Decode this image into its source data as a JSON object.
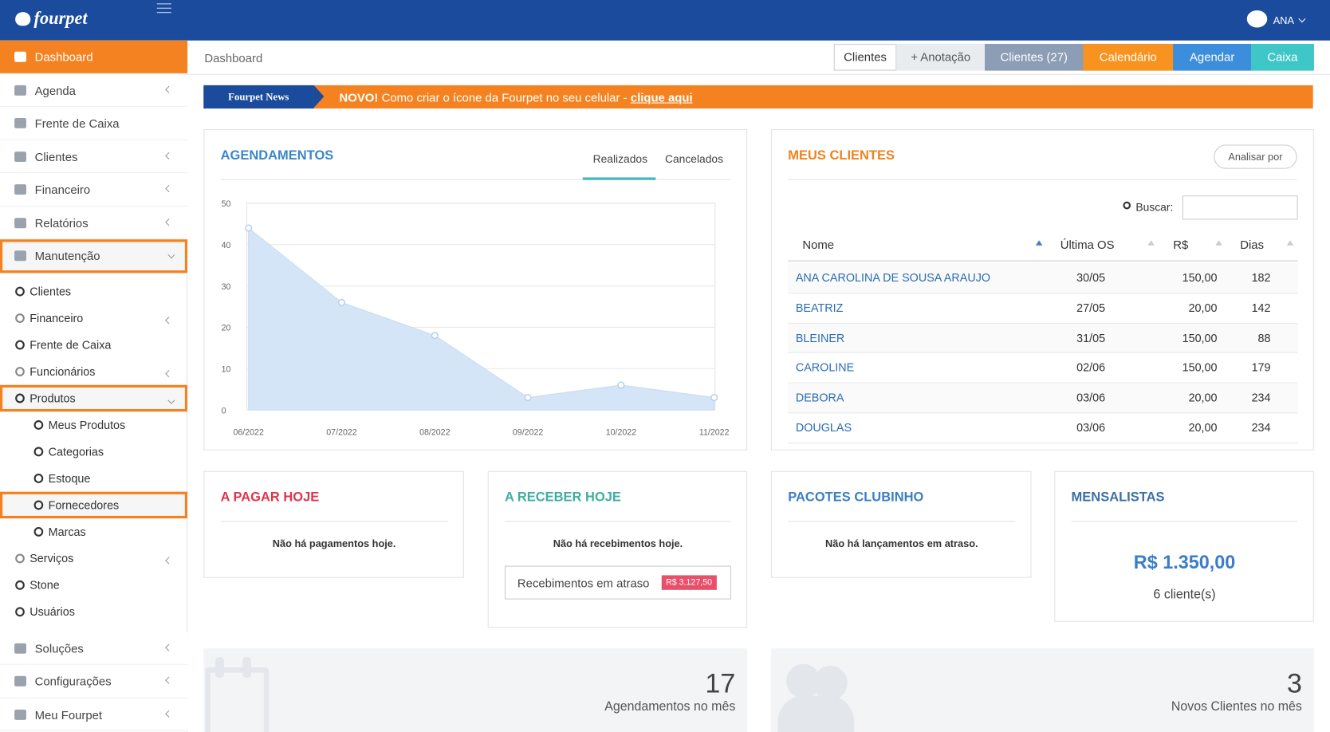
{
  "header": {
    "brand": "fourpet",
    "user": "ANA"
  },
  "sidebar": {
    "items": [
      {
        "label": "Dashboard",
        "active": true
      },
      {
        "label": "Agenda",
        "submenu": true
      },
      {
        "label": "Frente de Caixa"
      },
      {
        "label": "Clientes",
        "submenu": true
      },
      {
        "label": "Financeiro",
        "submenu": true
      },
      {
        "label": "Relatórios",
        "submenu": true
      },
      {
        "label": "Manutenção",
        "highlighted": true,
        "children": [
          {
            "label": "Clientes"
          },
          {
            "label": "Financeiro",
            "submenu": true
          },
          {
            "label": "Frente de Caixa"
          },
          {
            "label": "Funcionários",
            "submenu": true
          },
          {
            "label": "Produtos",
            "highlighted": true,
            "children": [
              {
                "label": "Meus Produtos"
              },
              {
                "label": "Categorias"
              },
              {
                "label": "Estoque"
              },
              {
                "label": "Fornecedores",
                "highlighted": true
              },
              {
                "label": "Marcas"
              }
            ]
          },
          {
            "label": "Serviços",
            "submenu": true
          },
          {
            "label": "Stone"
          },
          {
            "label": "Usuários"
          }
        ]
      },
      {
        "label": "Soluções",
        "submenu": true
      },
      {
        "label": "Configurações",
        "submenu": true
      },
      {
        "label": "Meu Fourpet",
        "submenu": true
      }
    ]
  },
  "breadcrumb": "Dashboard",
  "toolbar": [
    {
      "label": "Clientes",
      "color": "#ffffff",
      "text_color": "#333333"
    },
    {
      "label": "+ Anotação",
      "color": "#e9ecef",
      "text_color": "#555555"
    },
    {
      "label": "Clientes (27)",
      "color": "#8c9db5",
      "text_color": "#ffffff"
    },
    {
      "label": "Calendário",
      "color": "#f7931e",
      "text_color": "#ffffff"
    },
    {
      "label": "Agendar",
      "color": "#3c8ddc",
      "text_color": "#ffffff"
    },
    {
      "label": "Caixa",
      "color": "#3fc6c6",
      "text_color": "#ffffff"
    }
  ],
  "news": {
    "label": "Fourpet News",
    "badge": "NOVO!",
    "text": "Como criar o ícone da Fourpet no seu celular -",
    "link": "clique aqui"
  },
  "agendamentos": {
    "title": "AGENDAMENTOS",
    "color": "#3a87c8",
    "tabs": [
      "Realizados",
      "Cancelados"
    ],
    "chart": {
      "type": "area",
      "categories": [
        "06/2022",
        "07/2022",
        "08/2022",
        "09/2022",
        "10/2022",
        "11/2022"
      ],
      "values": [
        44,
        26,
        18,
        3,
        6,
        3
      ],
      "color": "#d5e5f8",
      "ylim": [
        0,
        50
      ],
      "yticks": [
        0,
        10,
        20,
        30,
        40,
        50
      ],
      "grid": true
    }
  },
  "clientes": {
    "title": "MEUS CLIENTES",
    "color": "#f0821e",
    "button": "Analisar por",
    "search": "Buscar:",
    "columns": [
      "Nome",
      "Última OS",
      "R$",
      "Dias"
    ],
    "rows": [
      [
        "ANA CAROLINA DE SOUSA ARAUJO",
        "30/05",
        "150,00",
        "182"
      ],
      [
        "BEATRIZ",
        "27/05",
        "20,00",
        "142"
      ],
      [
        "BLEINER",
        "31/05",
        "150,00",
        "88"
      ],
      [
        "CAROLINE",
        "02/06",
        "150,00",
        "179"
      ],
      [
        "DEBORA",
        "03/06",
        "20,00",
        "234"
      ],
      [
        "DOUGLAS",
        "03/06",
        "20,00",
        "234"
      ]
    ]
  },
  "pagar": {
    "title": "A PAGAR HOJE",
    "color": "#e0344b",
    "message": "Não há pagamentos hoje."
  },
  "receber": {
    "title": "A RECEBER HOJE",
    "color": "#3fae9f",
    "message": "Não há recebimentos hoje.",
    "late_label": "Recebimentos em atraso",
    "late_value": "R$ 3.127,50"
  },
  "pacotes": {
    "title": "PACOTES CLUBINHO",
    "color": "#3a7fc1",
    "message": "Não há lançamentos em atraso."
  },
  "mensalistas": {
    "title": "MENSALISTAS",
    "color": "#3a6fa8",
    "amount": "R$ 1.350,00",
    "count": "6 cliente(s)"
  },
  "stats": [
    {
      "value": "17",
      "label": "Agendamentos no mês"
    },
    {
      "value": "3",
      "label": "Novos Clientes no mês"
    }
  ]
}
